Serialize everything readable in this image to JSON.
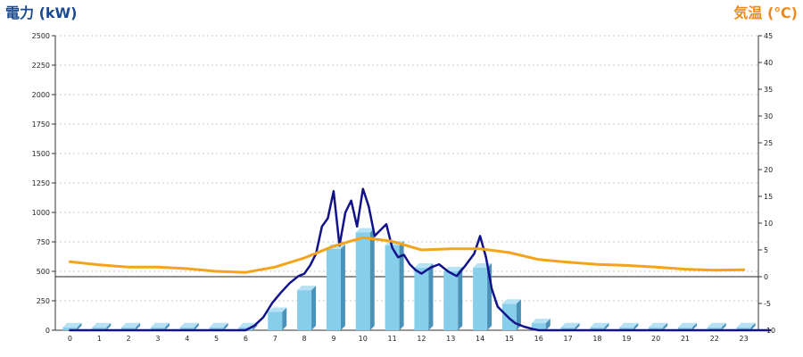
{
  "chart_data": {
    "type": "bar",
    "title_left": "電力 (kW)",
    "title_right": "気温 (℃)",
    "categories": [
      "0",
      "1",
      "2",
      "3",
      "4",
      "5",
      "6",
      "7",
      "8",
      "9",
      "10",
      "11",
      "12",
      "13",
      "14",
      "15",
      "16",
      "17",
      "18",
      "19",
      "20",
      "21",
      "22",
      "23"
    ],
    "y_left": {
      "lim": [
        0,
        2500
      ],
      "ticks": [
        "0",
        "250",
        "500",
        "750",
        "1000",
        "1250",
        "1500",
        "1750",
        "2000",
        "2250",
        "2500"
      ]
    },
    "y_right": {
      "lim": [
        -10,
        45
      ],
      "ticks": [
        "-10",
        "-5",
        "0",
        "5",
        "10",
        "15",
        "20",
        "25",
        "30",
        "35",
        "40",
        "45"
      ]
    },
    "grid": "horizontal-dashed",
    "zero_line_right": 0,
    "colors": {
      "bar_front": "#87ceeb",
      "bar_side": "#4a92b8",
      "bar_top": "#b7e2f5",
      "power_line": "#12128a",
      "temperature_line": "#f5a31a",
      "title_left": "#1a4a8f",
      "title_right": "#ee8a1d"
    },
    "series": [
      {
        "type": "bar",
        "axis": "left",
        "values": [
          25,
          25,
          25,
          25,
          25,
          25,
          25,
          155,
          340,
          690,
          830,
          720,
          530,
          500,
          530,
          225,
          60,
          25,
          25,
          25,
          25,
          25,
          25,
          25
        ]
      },
      {
        "type": "line",
        "axis": "left",
        "x": [
          0,
          6,
          6.3,
          6.6,
          6.9,
          7.2,
          7.5,
          7.8,
          8.0,
          8.2,
          8.4,
          8.6,
          8.8,
          9.0,
          9.2,
          9.4,
          9.6,
          9.8,
          10.0,
          10.2,
          10.4,
          10.6,
          10.8,
          11.0,
          11.2,
          11.4,
          11.6,
          11.8,
          12.0,
          12.3,
          12.6,
          12.9,
          13.2,
          13.5,
          13.8,
          14.0,
          14.2,
          14.4,
          14.6,
          14.8,
          15.0,
          15.2,
          15.5,
          15.8,
          16.0,
          16.2,
          23.9
        ],
        "y": [
          0,
          0,
          40,
          110,
          230,
          320,
          400,
          460,
          480,
          550,
          650,
          880,
          950,
          1180,
          720,
          1000,
          1100,
          880,
          1200,
          1050,
          800,
          850,
          900,
          700,
          620,
          640,
          560,
          510,
          480,
          530,
          560,
          500,
          460,
          550,
          650,
          800,
          620,
          350,
          200,
          150,
          100,
          60,
          30,
          10,
          0,
          0,
          0
        ]
      },
      {
        "type": "line",
        "axis": "right",
        "x": [
          0,
          1,
          2,
          3,
          4,
          5,
          6,
          7,
          8,
          9,
          10,
          11,
          12,
          13,
          14,
          15,
          16,
          17,
          18,
          19,
          20,
          21,
          22,
          23
        ],
        "y": [
          2.8,
          2.2,
          1.8,
          1.8,
          1.5,
          1.0,
          0.8,
          1.8,
          3.5,
          5.7,
          7.3,
          6.6,
          5.0,
          5.2,
          5.2,
          4.5,
          3.2,
          2.7,
          2.3,
          2.1,
          1.8,
          1.4,
          1.2,
          1.3
        ]
      }
    ]
  }
}
